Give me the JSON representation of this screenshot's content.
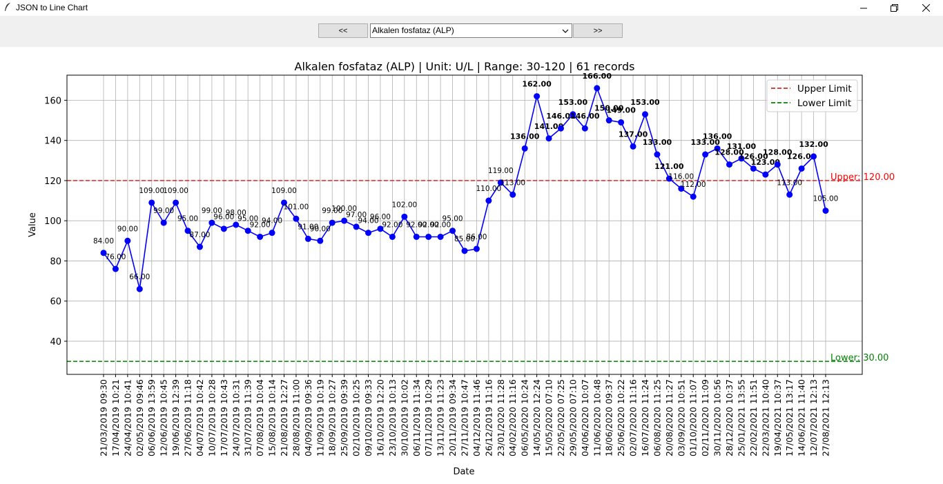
{
  "window": {
    "title": "JSON to Line Chart",
    "minimize_icon": "minimize-icon",
    "maximize_icon": "restore-icon",
    "close_icon": "close-icon"
  },
  "toolbar": {
    "prev_label": "<<",
    "next_label": ">>",
    "selected_test": "Alkalen fosfataz (ALP)"
  },
  "chart_data": {
    "type": "line",
    "title": "Alkalen fosfataz (ALP) | Unit: U/L | Range: 30-120 | 61 records",
    "xlabel": "Date",
    "ylabel": "Value",
    "ylim": [
      23.5,
      172.5
    ],
    "yticks": [
      40,
      60,
      80,
      100,
      120,
      140,
      160
    ],
    "grid": true,
    "legend_position": "top-right",
    "upper_limit": 120,
    "lower_limit": 30,
    "upper_label": "Upper: 120.00",
    "lower_label": "Lower: 30.00",
    "legend": [
      {
        "label": "Upper Limit",
        "color": "#d62728"
      },
      {
        "label": "Lower Limit",
        "color": "#008000"
      }
    ],
    "series_color": "#0000ff",
    "x": [
      "21/03/2019 09:30",
      "17/04/2019 10:21",
      "24/04/2019 10:41",
      "02/05/2019 09:46",
      "06/06/2019 13:59",
      "12/06/2019 10:45",
      "19/06/2019 12:39",
      "27/06/2019 11:18",
      "04/07/2019 10:42",
      "10/07/2019 10:28",
      "17/07/2019 10:43",
      "24/07/2019 10:31",
      "31/07/2019 11:39",
      "07/08/2019 10:04",
      "15/08/2019 10:14",
      "21/08/2019 12:27",
      "28/08/2019 11:00",
      "04/09/2019 09:36",
      "11/09/2019 10:19",
      "18/09/2019 10:27",
      "25/09/2019 09:39",
      "02/10/2019 10:25",
      "09/10/2019 09:33",
      "16/10/2019 12:20",
      "23/10/2019 10:13",
      "30/10/2019 10:02",
      "06/11/2019 11:34",
      "07/11/2019 10:29",
      "13/11/2019 11:23",
      "20/11/2019 09:34",
      "27/11/2019 10:47",
      "04/12/2019 11:46",
      "26/12/2019 11:16",
      "23/01/2020 11:28",
      "04/02/2020 11:16",
      "06/05/2020 10:24",
      "14/05/2020 12:24",
      "15/05/2020 07:10",
      "22/05/2020 07:25",
      "29/05/2020 07:10",
      "04/06/2020 10:07",
      "11/06/2020 10:48",
      "18/06/2020 09:37",
      "25/06/2020 10:22",
      "02/07/2020 11:16",
      "16/07/2020 11:24",
      "06/08/2020 11:25",
      "20/08/2020 11:27",
      "03/09/2020 10:51",
      "01/10/2020 11:07",
      "02/11/2020 11:09",
      "30/11/2020 10:56",
      "28/12/2020 10:37",
      "25/01/2021 13:55",
      "22/02/2021 11:51",
      "22/03/2021 10:40",
      "19/04/2021 10:37",
      "17/05/2021 13:17",
      "14/06/2021 11:40",
      "12/07/2021 12:13",
      "27/08/2021 12:13"
    ],
    "values": [
      84,
      76,
      90,
      66,
      109,
      99,
      109,
      95,
      87,
      99,
      96,
      98,
      95,
      92,
      94,
      109,
      101,
      91,
      90,
      99,
      100,
      97,
      94,
      96,
      92,
      102,
      92,
      92,
      92,
      95,
      85,
      86,
      110,
      119,
      113,
      136,
      162,
      141,
      146,
      153,
      146,
      166,
      150,
      149,
      137,
      153,
      133,
      121,
      116,
      112,
      133,
      136,
      128,
      131,
      126,
      123,
      128,
      113,
      126,
      132,
      105
    ],
    "data_labels": [
      "84.00",
      "76.00",
      "90.00",
      "66.00",
      "109.00",
      "99.00",
      "109.00",
      "95.00",
      "87.00",
      "99.00",
      "96.00",
      "98.00",
      "95.00",
      "92.00",
      "94.00",
      "109.00",
      "101.00",
      "91.00",
      "90.00",
      "99.00",
      "100.00",
      "97.00",
      "94.00",
      "96.00",
      "92.00",
      "102.00",
      "92.00",
      "92.00",
      "92.00",
      "95.00",
      "85.00",
      "86.00",
      "110.00",
      "119.00",
      "113.00",
      "136.00",
      "162.00",
      "141.00",
      "146.00",
      "153.00",
      "146.00",
      "166.00",
      "150.00",
      "149.00",
      "137.00",
      "153.00",
      "133.00",
      "121.00",
      "116.00",
      "112.00",
      "133.00",
      "136.00",
      "128.00",
      "131.00",
      "126.00",
      "123.00",
      "128.00",
      "113.00",
      "126.00",
      "132.00",
      "105.00"
    ]
  }
}
